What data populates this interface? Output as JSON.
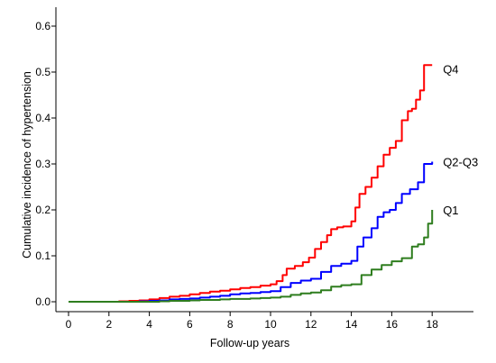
{
  "chart_data": {
    "type": "line",
    "step": true,
    "xlabel": "Follow-up years",
    "ylabel": "Cumulative incidence of hypertension",
    "xlim": [
      0,
      20
    ],
    "ylim": [
      0,
      0.6
    ],
    "xticks": [
      0,
      2,
      4,
      6,
      8,
      10,
      12,
      14,
      16,
      18
    ],
    "xtick_labels": [
      "0",
      "2",
      "4",
      "6",
      "8",
      "10",
      "12",
      "14",
      "16",
      "18"
    ],
    "yticks": [
      0,
      0.1,
      0.2,
      0.3,
      0.4,
      0.5,
      0.6
    ],
    "ytick_labels": [
      "0.0",
      "0.1",
      "0.2",
      "0.3",
      "0.4",
      "0.5",
      "0.6"
    ],
    "grid": false,
    "legend": "direct labels at line ends",
    "series": [
      {
        "name": "Q4",
        "color": "#ff0000",
        "x": [
          0,
          2.5,
          3.0,
          3.5,
          4.0,
          4.5,
          5.0,
          5.5,
          6.0,
          6.5,
          7.0,
          7.5,
          8.0,
          8.5,
          9.0,
          9.5,
          10.0,
          10.3,
          10.6,
          10.8,
          11.2,
          11.6,
          11.9,
          12.2,
          12.5,
          12.8,
          13.0,
          13.3,
          13.6,
          14.0,
          14.2,
          14.4,
          14.7,
          15.0,
          15.3,
          15.6,
          15.9,
          16.2,
          16.5,
          16.8,
          17.0,
          17.2,
          17.4,
          17.6,
          18.0
        ],
        "y": [
          0,
          0.001,
          0.002,
          0.003,
          0.005,
          0.008,
          0.011,
          0.013,
          0.016,
          0.019,
          0.022,
          0.024,
          0.027,
          0.03,
          0.032,
          0.035,
          0.038,
          0.045,
          0.058,
          0.072,
          0.078,
          0.086,
          0.096,
          0.115,
          0.13,
          0.145,
          0.158,
          0.162,
          0.164,
          0.175,
          0.205,
          0.235,
          0.25,
          0.27,
          0.295,
          0.32,
          0.335,
          0.35,
          0.395,
          0.415,
          0.42,
          0.44,
          0.46,
          0.515,
          0.515
        ]
      },
      {
        "name": "Q2-Q3",
        "color": "#0000ff",
        "x": [
          0,
          3.5,
          4.0,
          4.5,
          5.0,
          5.5,
          6.0,
          6.5,
          7.0,
          7.5,
          8.0,
          8.5,
          9.0,
          9.5,
          10.0,
          10.5,
          11.0,
          11.5,
          12.0,
          12.5,
          13.0,
          13.5,
          14.0,
          14.3,
          14.6,
          15.0,
          15.3,
          15.6,
          15.9,
          16.2,
          16.5,
          16.9,
          17.3,
          17.6,
          18.0
        ],
        "y": [
          0,
          0.001,
          0.002,
          0.003,
          0.005,
          0.006,
          0.007,
          0.009,
          0.011,
          0.013,
          0.016,
          0.018,
          0.019,
          0.021,
          0.023,
          0.032,
          0.041,
          0.046,
          0.05,
          0.065,
          0.078,
          0.083,
          0.089,
          0.12,
          0.14,
          0.16,
          0.185,
          0.195,
          0.2,
          0.215,
          0.235,
          0.245,
          0.26,
          0.3,
          0.305
        ]
      },
      {
        "name": "Q1",
        "color": "#2e7d1e",
        "x": [
          0,
          4.5,
          5.0,
          5.5,
          6.0,
          6.5,
          7.0,
          7.5,
          8.0,
          8.5,
          9.0,
          9.5,
          10.0,
          10.5,
          11.0,
          11.5,
          12.0,
          12.5,
          13.0,
          13.5,
          14.0,
          14.5,
          15.0,
          15.5,
          16.0,
          16.5,
          17.0,
          17.3,
          17.6,
          17.8,
          18.0
        ],
        "y": [
          0,
          0.001,
          0.002,
          0.002,
          0.003,
          0.004,
          0.004,
          0.005,
          0.006,
          0.006,
          0.007,
          0.008,
          0.009,
          0.011,
          0.015,
          0.018,
          0.02,
          0.025,
          0.033,
          0.036,
          0.038,
          0.058,
          0.07,
          0.08,
          0.088,
          0.095,
          0.12,
          0.125,
          0.14,
          0.17,
          0.2
        ]
      }
    ]
  }
}
